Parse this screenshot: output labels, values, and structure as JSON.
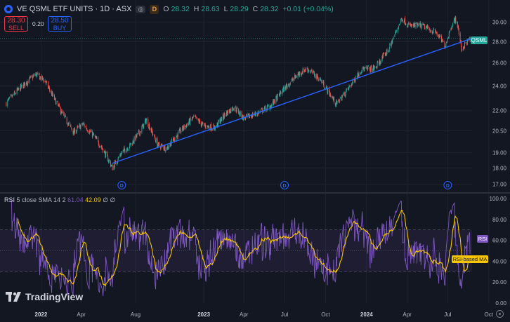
{
  "header": {
    "symbol_title": "VE QSML ETF UNITS · 1D · ASX",
    "eye_label": "◎",
    "dividend_badge": "D",
    "ohlc": {
      "o_label": "O",
      "o_value": "28.32",
      "h_label": "H",
      "h_value": "28.63",
      "l_label": "L",
      "l_value": "28.29",
      "c_label": "C",
      "c_value": "28.32",
      "change": "+0.01 (+0.04%)"
    }
  },
  "trade": {
    "sell_price": "28.30",
    "sell_label": "SELL",
    "spread": "0.20",
    "buy_price": "28.50",
    "buy_label": "BUY"
  },
  "price_tag": "QSML",
  "rsi": {
    "name": "RSI",
    "params": "5 close SMA 14 2",
    "rsi_value": "61.04",
    "ma_value": "42.09",
    "extra1": "∅",
    "extra2": "∅",
    "tag_rsi": "RSI",
    "tag_ma": "RSI-based MA"
  },
  "logo": {
    "text": "TradingView"
  },
  "colors": {
    "background": "#131722",
    "up": "#26a69a",
    "down": "#ef5350",
    "trendline": "#2962ff",
    "rsi": "#7e57c2",
    "rsi_ma": "#f7c500",
    "price_tag": "#26a69a"
  },
  "chart_data": [
    {
      "type": "candlestick",
      "price_axis_ticks": [
        "30.00",
        "28.00",
        "26.00",
        "24.00",
        "22.00",
        "20.50",
        "19.00",
        "18.00",
        "17.00"
      ],
      "ylim": [
        16.7,
        31.0
      ],
      "scale": "log",
      "time_axis_ticks": [
        "2022",
        "Apr",
        "Aug",
        "2023",
        "Apr",
        "Jul",
        "Oct",
        "2024",
        "Apr",
        "Jul",
        "Oct"
      ],
      "last_close": 28.32,
      "price_anchors": [
        [
          "2021-10-15",
          22.6
        ],
        [
          "2021-11-15",
          23.8
        ],
        [
          "2021-12-20",
          25.0
        ],
        [
          "2022-01-10",
          24.4
        ],
        [
          "2022-01-28",
          23.1
        ],
        [
          "2022-02-20",
          21.6
        ],
        [
          "2022-03-15",
          20.4
        ],
        [
          "2022-04-05",
          21.0
        ],
        [
          "2022-04-30",
          20.1
        ],
        [
          "2022-05-20",
          19.2
        ],
        [
          "2022-06-10",
          18.0
        ],
        [
          "2022-07-01",
          19.0
        ],
        [
          "2022-07-20",
          19.5
        ],
        [
          "2022-08-10",
          20.4
        ],
        [
          "2022-08-25",
          21.3
        ],
        [
          "2022-09-20",
          19.5
        ],
        [
          "2022-10-10",
          19.3
        ],
        [
          "2022-11-10",
          20.5
        ],
        [
          "2022-12-10",
          21.5
        ],
        [
          "2022-12-30",
          20.9
        ],
        [
          "2023-01-25",
          20.7
        ],
        [
          "2023-02-20",
          21.8
        ],
        [
          "2023-03-10",
          22.3
        ],
        [
          "2023-04-01",
          21.4
        ],
        [
          "2023-05-01",
          21.8
        ],
        [
          "2023-06-01",
          22.4
        ],
        [
          "2023-07-01",
          23.8
        ],
        [
          "2023-08-01",
          25.0
        ],
        [
          "2023-08-20",
          25.5
        ],
        [
          "2023-09-20",
          24.5
        ],
        [
          "2023-10-25",
          22.5
        ],
        [
          "2023-11-20",
          23.7
        ],
        [
          "2023-12-20",
          25.4
        ],
        [
          "2024-01-20",
          25.5
        ],
        [
          "2024-02-20",
          27.3
        ],
        [
          "2024-03-20",
          30.4
        ],
        [
          "2024-04-05",
          29.6
        ],
        [
          "2024-05-05",
          29.6
        ],
        [
          "2024-06-05",
          28.9
        ],
        [
          "2024-06-25",
          27.6
        ],
        [
          "2024-07-10",
          29.7
        ],
        [
          "2024-07-20",
          30.4
        ],
        [
          "2024-08-01",
          27.3
        ],
        [
          "2024-08-20",
          28.32
        ]
      ],
      "trendline": [
        [
          "2022-06-10",
          18.3
        ],
        [
          "2024-09-01",
          28.45
        ]
      ],
      "dividends": [
        "2022-07-01",
        "2023-07-01",
        "2024-07-01"
      ]
    },
    {
      "type": "line",
      "title": "RSI 5 close SMA 14 2",
      "y_axis_ticks": [
        "100.00",
        "80.00",
        "60.00",
        "40.00",
        "20.00",
        "0.00"
      ],
      "ylim": [
        0,
        100
      ],
      "bands": {
        "upper": 70,
        "middle": 50,
        "lower": 30
      },
      "series": [
        {
          "name": "RSI",
          "last": 61.04
        },
        {
          "name": "RSI-based MA",
          "last": 42.09
        }
      ]
    }
  ]
}
